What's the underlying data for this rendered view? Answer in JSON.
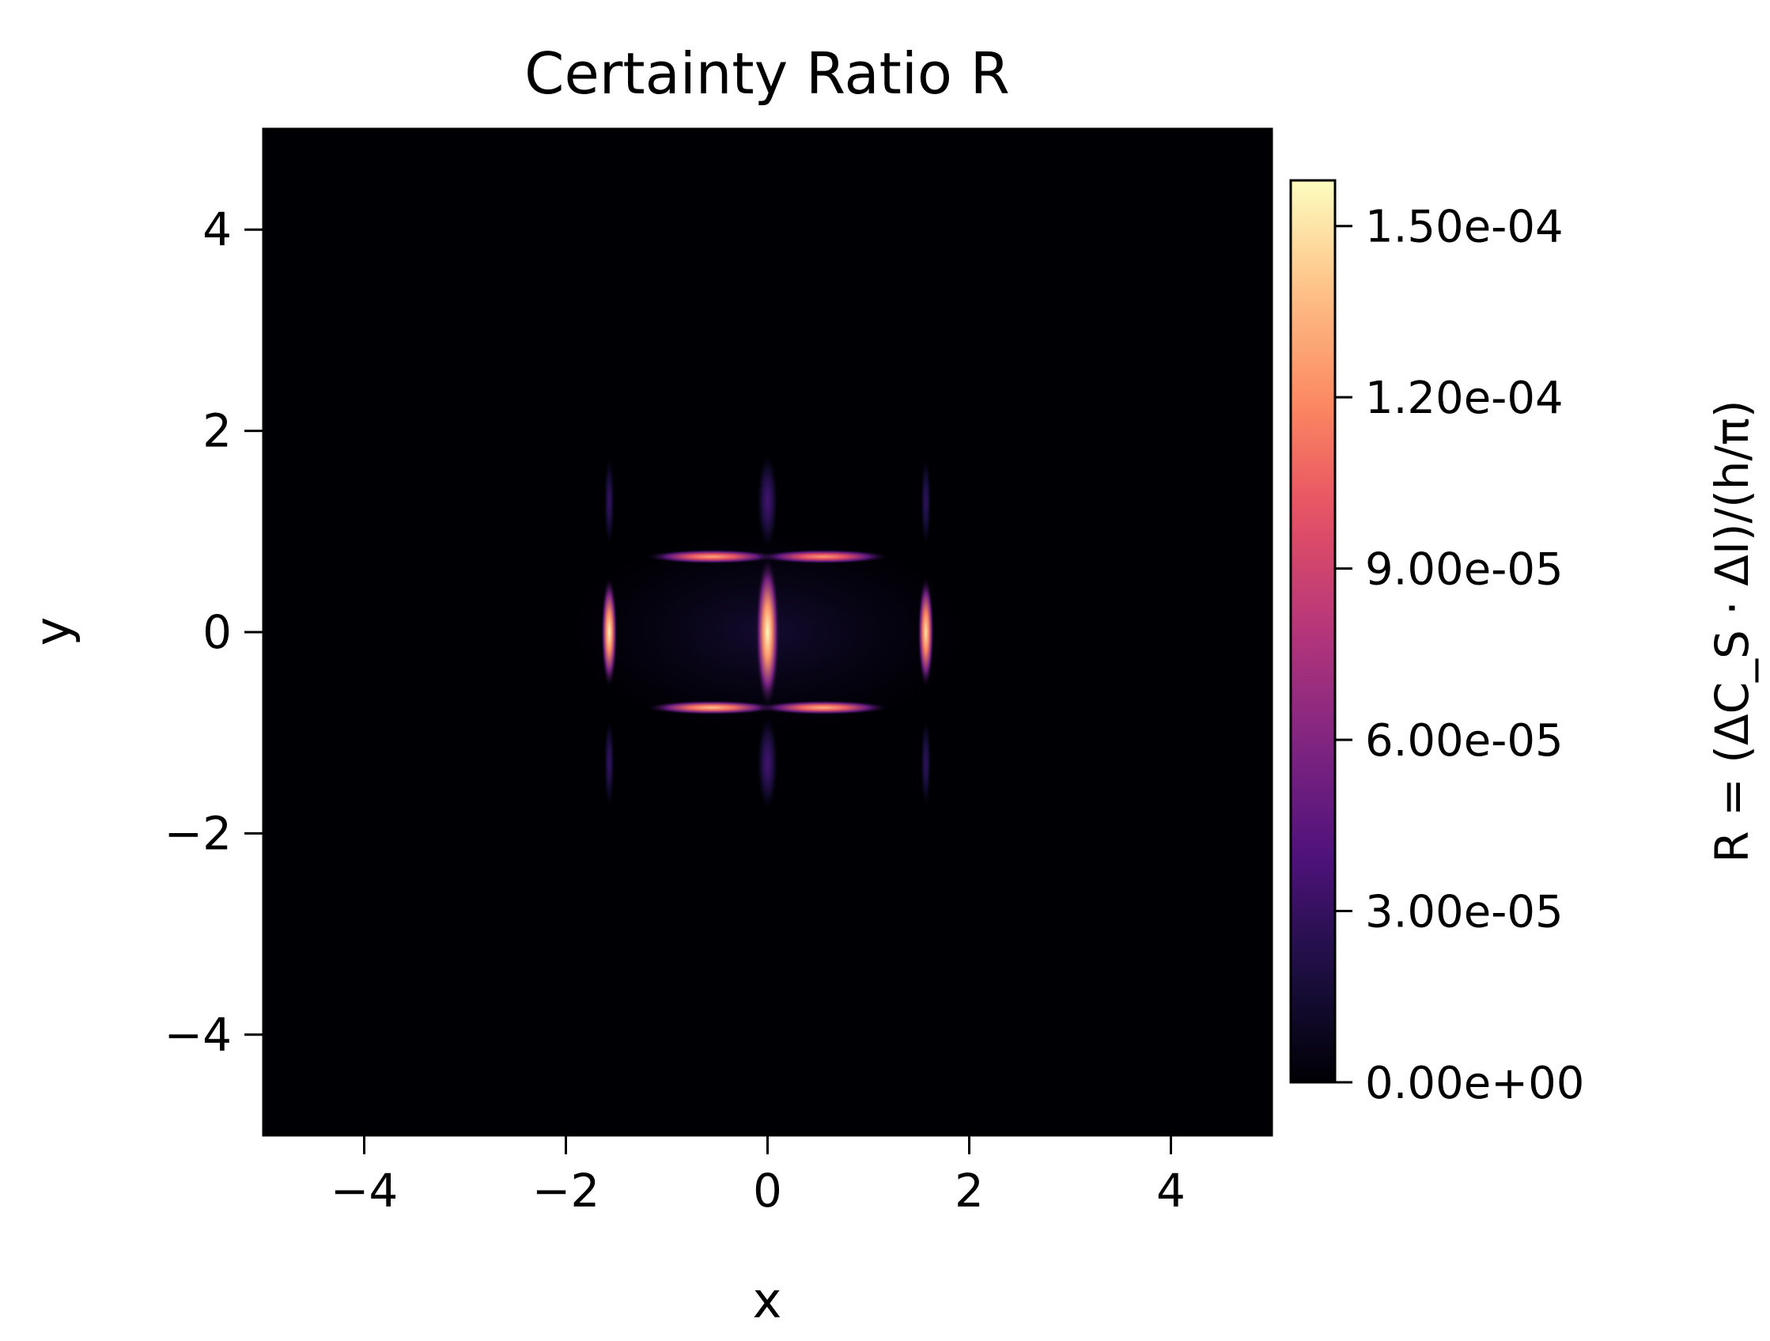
{
  "chart_data": {
    "type": "heatmap",
    "title": "Certainty Ratio R",
    "xlabel": "x",
    "ylabel": "y",
    "xlim": [
      -5,
      5
    ],
    "ylim": [
      -5,
      5
    ],
    "xticks": [
      -4,
      -2,
      0,
      2,
      4
    ],
    "yticks": [
      -4,
      -2,
      0,
      2,
      4
    ],
    "xtick_labels": [
      "−4",
      "−2",
      "0",
      "2",
      "4"
    ],
    "ytick_labels": [
      "−4",
      "−2",
      "0",
      "2",
      "4"
    ],
    "colormap": "magma",
    "background_color": "#000004",
    "grid": false,
    "colorbar": {
      "label": "R = (ΔC_S · ΔI)/(h/π)",
      "range": [
        0,
        0.000158
      ],
      "ticks": [
        0,
        3e-05,
        6e-05,
        9e-05,
        0.00012,
        0.00015
      ],
      "tick_labels": [
        "0.00e+00",
        "3.00e-05",
        "6.00e-05",
        "9.00e-05",
        "1.20e-04",
        "1.50e-04"
      ]
    },
    "features": [
      {
        "name": "center-vertical-lobe",
        "x": 0,
        "y": 0,
        "value": 0.000158
      },
      {
        "name": "left-vertical-lobe",
        "x": -1.57,
        "y": 0,
        "value": 0.000155
      },
      {
        "name": "right-vertical-lobe",
        "x": 1.57,
        "y": 0,
        "value": 0.00015
      },
      {
        "name": "upper-left-horizontal-lobe",
        "x": -0.55,
        "y": 0.75,
        "value": 0.00013
      },
      {
        "name": "upper-right-horizontal-lobe",
        "x": 0.55,
        "y": 0.75,
        "value": 0.000125
      },
      {
        "name": "lower-left-horizontal-lobe",
        "x": -0.55,
        "y": -0.75,
        "value": 0.00014
      },
      {
        "name": "lower-right-horizontal-lobe",
        "x": 0.55,
        "y": -0.75,
        "value": 0.000135
      },
      {
        "name": "center-upper-faint-lobe",
        "x": 0,
        "y": 1.3,
        "value": 3.5e-05
      },
      {
        "name": "center-lower-faint-lobe",
        "x": 0,
        "y": -1.3,
        "value": 3.5e-05
      },
      {
        "name": "left-upper-faint-lobe",
        "x": -1.57,
        "y": 1.3,
        "value": 3e-05
      },
      {
        "name": "left-lower-faint-lobe",
        "x": -1.57,
        "y": -1.3,
        "value": 3e-05
      },
      {
        "name": "right-upper-faint-lobe",
        "x": 1.57,
        "y": 1.3,
        "value": 2.8e-05
      },
      {
        "name": "right-lower-faint-lobe",
        "x": 1.57,
        "y": -1.3,
        "value": 2.8e-05
      }
    ]
  }
}
